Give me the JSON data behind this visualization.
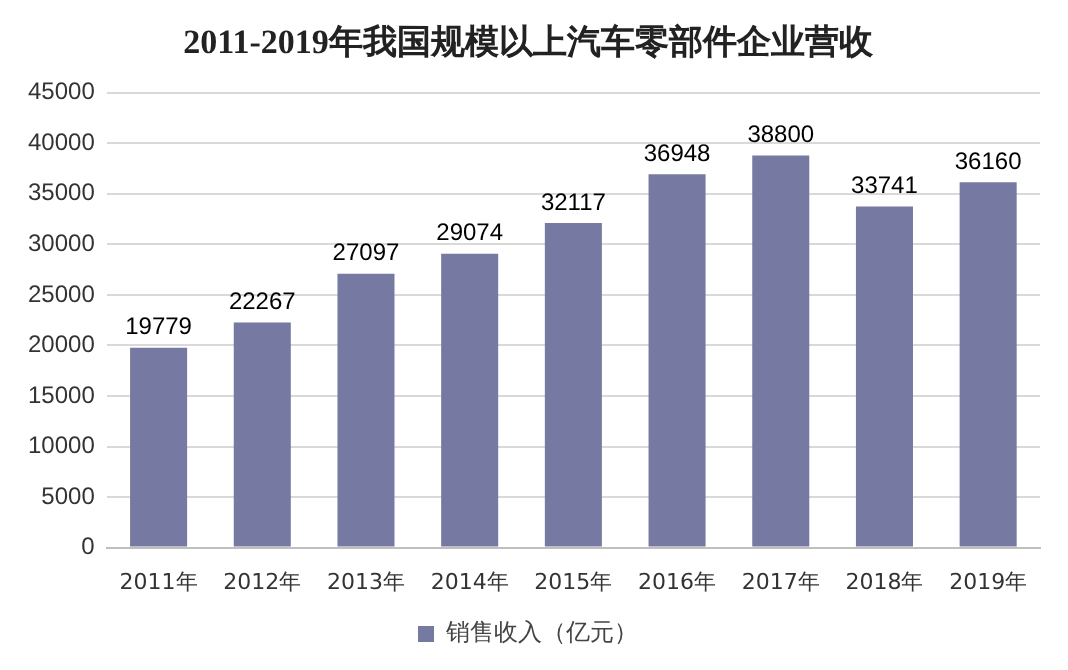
{
  "chart_data": {
    "type": "bar",
    "title": "2011-2019年我国规模以上汽车零部件企业营收",
    "categories": [
      "2011年",
      "2012年",
      "2013年",
      "2014年",
      "2015年",
      "2016年",
      "2017年",
      "2018年",
      "2019年"
    ],
    "series": [
      {
        "name": "销售收入（亿元）",
        "color": "#7679a1",
        "values": [
          19779,
          22267,
          27097,
          29074,
          32117,
          36948,
          38800,
          33741,
          36160
        ]
      }
    ],
    "ylim": [
      0,
      45000
    ],
    "yticks": [
      0,
      5000,
      10000,
      15000,
      20000,
      25000,
      30000,
      35000,
      40000,
      45000
    ],
    "grid": "y",
    "legend": "bottom",
    "data_labels": true
  }
}
